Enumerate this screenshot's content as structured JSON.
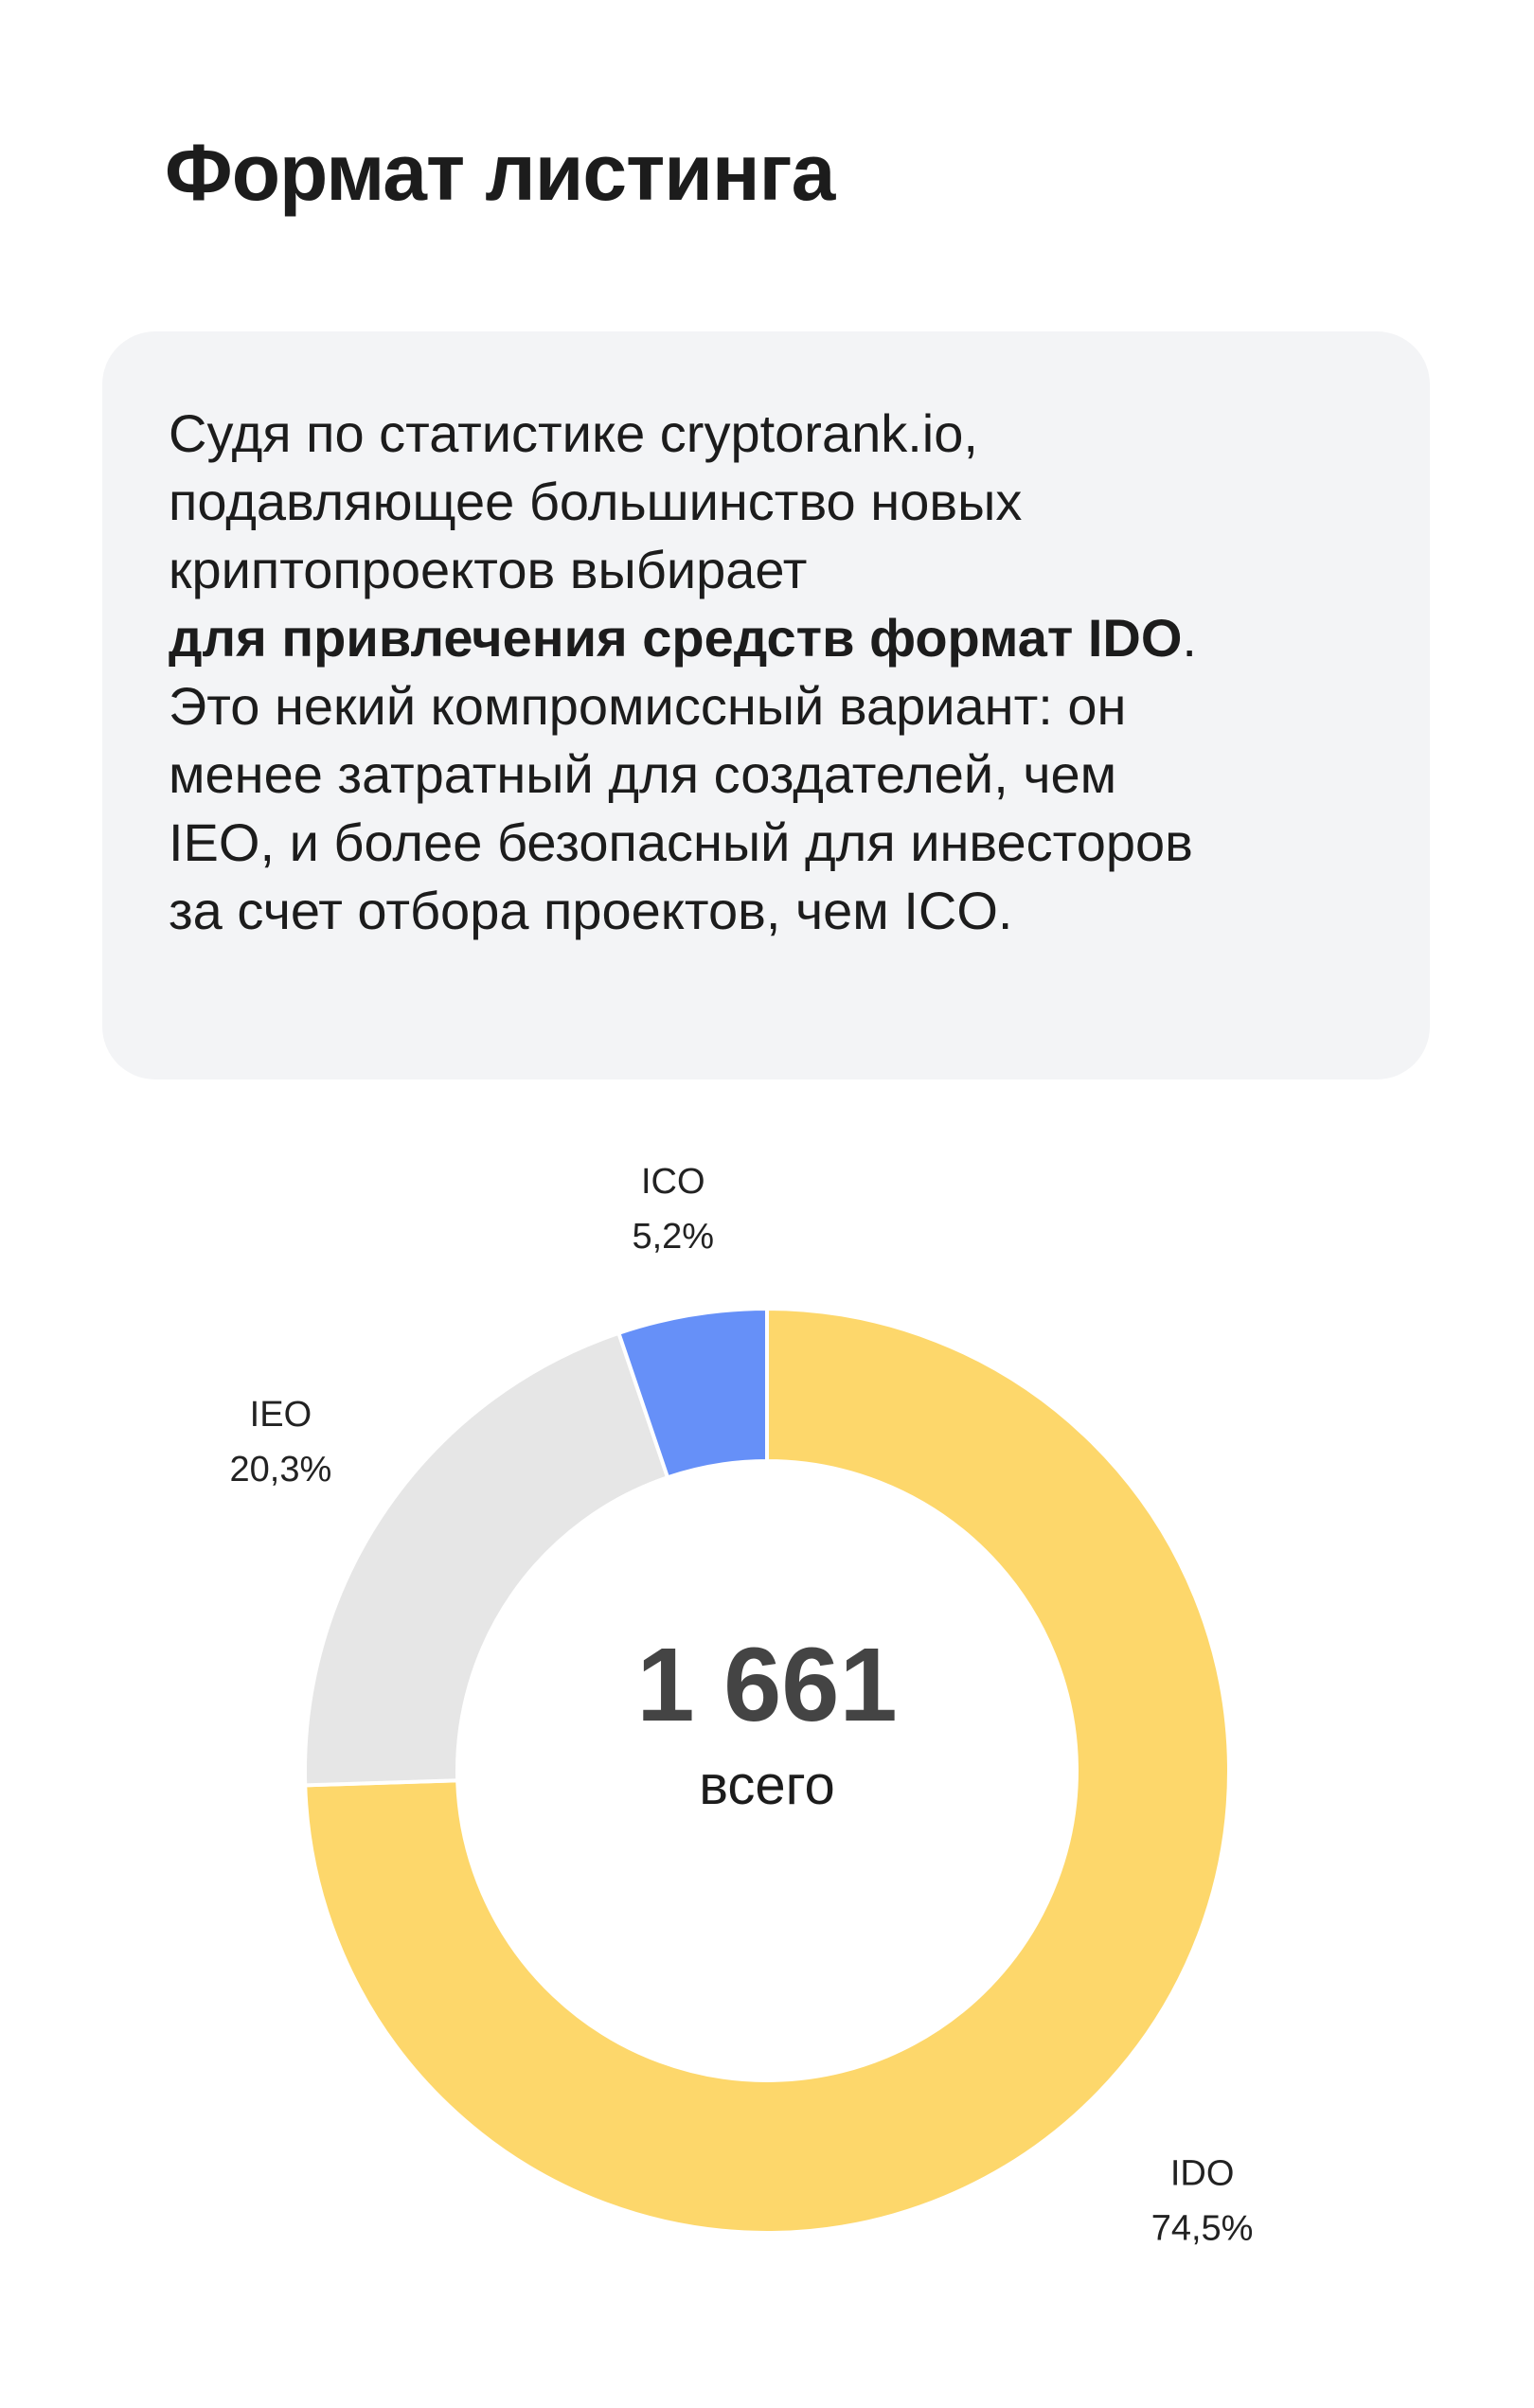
{
  "page": {
    "title": "Формат листинга"
  },
  "info_card": {
    "line1": "Судя по статистике cryptorank.io,",
    "line2": "подавляющее большинство новых",
    "line3": "криптопроектов выбирает",
    "line4_bold": "для привлечения средств формат IDO",
    "line4_tail": ".",
    "line5": "Это некий компромиссный вариант: он",
    "line6": "менее затратный для создателей, чем",
    "line7": "IEO, и более безопасный для инвесторов",
    "line8": "за счет отбора проектов, чем ICO."
  },
  "chart_data": {
    "type": "pie",
    "donut": true,
    "categories": [
      "IDO",
      "IEO",
      "ICO"
    ],
    "values": [
      74.5,
      20.3,
      5.2
    ],
    "value_labels": [
      "74,5%",
      "20,3%",
      "5,2%"
    ],
    "colors": [
      "#fdd76b",
      "#e6e6e6",
      "#6690f8"
    ],
    "center_total": "1 661",
    "center_caption": "всего"
  }
}
